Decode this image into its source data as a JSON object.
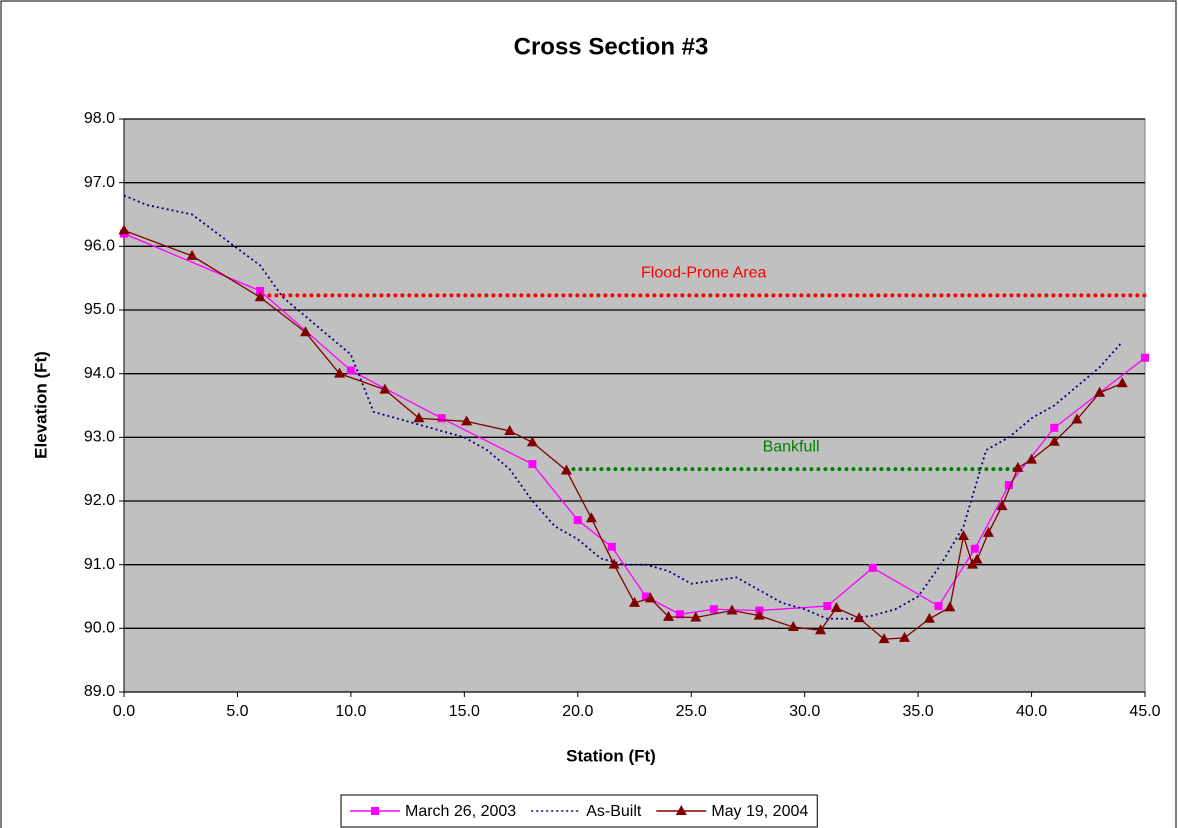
{
  "chart_data": {
    "type": "line",
    "title": "Cross Section #3",
    "xlabel": "Station (Ft)",
    "ylabel": "Elevation (Ft)",
    "xlim": [
      0,
      45
    ],
    "ylim": [
      89,
      98
    ],
    "xticks": [
      {
        "value": 0,
        "label": "0.0"
      },
      {
        "value": 5,
        "label": "5.0"
      },
      {
        "value": 10,
        "label": "10.0"
      },
      {
        "value": 15,
        "label": "15.0"
      },
      {
        "value": 20,
        "label": "20.0"
      },
      {
        "value": 25,
        "label": "25.0"
      },
      {
        "value": 30,
        "label": "30.0"
      },
      {
        "value": 35,
        "label": "35.0"
      },
      {
        "value": 40,
        "label": "40.0"
      },
      {
        "value": 45,
        "label": "45.0"
      }
    ],
    "yticks": [
      {
        "value": 89,
        "label": "89.0"
      },
      {
        "value": 90,
        "label": "90.0"
      },
      {
        "value": 91,
        "label": "91.0"
      },
      {
        "value": 92,
        "label": "92.0"
      },
      {
        "value": 93,
        "label": "93.0"
      },
      {
        "value": 94,
        "label": "94.0"
      },
      {
        "value": 95,
        "label": "95.0"
      },
      {
        "value": 96,
        "label": "96.0"
      },
      {
        "value": 97,
        "label": "97.0"
      },
      {
        "value": 98,
        "label": "98.0"
      }
    ],
    "grid": true,
    "legend": "bottom",
    "series": [
      {
        "name": "March 26, 2003",
        "color": "#ff00ff",
        "marker": "square",
        "dash": "solid",
        "x": [
          0,
          6,
          10,
          14,
          18,
          20,
          21.5,
          23,
          24.5,
          26,
          28,
          31,
          33,
          35.9,
          37.5,
          39,
          41,
          45
        ],
        "values": [
          96.2,
          95.3,
          94.05,
          93.3,
          92.58,
          91.7,
          91.28,
          90.5,
          90.22,
          90.3,
          90.28,
          90.35,
          90.95,
          90.35,
          91.25,
          92.25,
          93.15,
          94.25
        ]
      },
      {
        "name": "As-Built",
        "color": "#000080",
        "marker": "none",
        "dash": "dotted",
        "x": [
          0,
          1,
          3,
          4.5,
          6,
          7,
          8,
          9,
          10,
          11,
          12,
          13,
          14,
          15,
          16,
          17,
          18,
          19,
          20,
          21,
          22,
          23,
          24,
          25,
          26,
          27,
          28,
          29,
          30,
          31,
          32,
          33,
          34,
          35,
          36,
          37,
          38,
          39,
          40,
          41,
          42,
          43,
          44
        ],
        "values": [
          96.8,
          96.65,
          96.5,
          96.1,
          95.7,
          95.2,
          94.9,
          94.6,
          94.3,
          93.4,
          93.3,
          93.2,
          93.1,
          93.0,
          92.8,
          92.5,
          92.0,
          91.6,
          91.4,
          91.1,
          91.0,
          91.0,
          90.9,
          90.7,
          90.75,
          90.8,
          90.6,
          90.4,
          90.3,
          90.15,
          90.15,
          90.2,
          90.3,
          90.5,
          91.0,
          91.6,
          92.8,
          93.0,
          93.3,
          93.5,
          93.8,
          94.1,
          94.5
        ]
      },
      {
        "name": "May 19, 2004",
        "color": "#800000",
        "marker": "triangle",
        "dash": "solid",
        "x": [
          0,
          3,
          6,
          8,
          9.5,
          11.5,
          13,
          15.1,
          17,
          18,
          19.5,
          20.6,
          21.6,
          22.5,
          23.2,
          24,
          25.2,
          26.8,
          28,
          29.5,
          30.7,
          31.4,
          32.4,
          33.5,
          34.4,
          35.5,
          36.4,
          37,
          37.4,
          37.6,
          38.1,
          38.7,
          39.4,
          40,
          41,
          42,
          43,
          44
        ],
        "values": [
          96.25,
          95.85,
          95.2,
          94.65,
          94.0,
          93.75,
          93.3,
          93.25,
          93.1,
          92.92,
          92.48,
          91.73,
          91.0,
          90.4,
          90.47,
          90.18,
          90.17,
          90.28,
          90.2,
          90.02,
          89.97,
          90.32,
          90.16,
          89.83,
          89.85,
          90.15,
          90.33,
          91.45,
          91.0,
          91.08,
          91.5,
          91.92,
          92.52,
          92.65,
          92.93,
          93.28,
          93.7,
          93.85
        ]
      }
    ],
    "reference_lines": [
      {
        "label": "Flood-Prone Area",
        "color": "#ff0000",
        "value": 95.23,
        "x": [
          6.1,
          45
        ]
      },
      {
        "label": "Bankfull",
        "color": "#008000",
        "value": 92.5,
        "x": [
          19.5,
          39.3
        ]
      }
    ]
  }
}
